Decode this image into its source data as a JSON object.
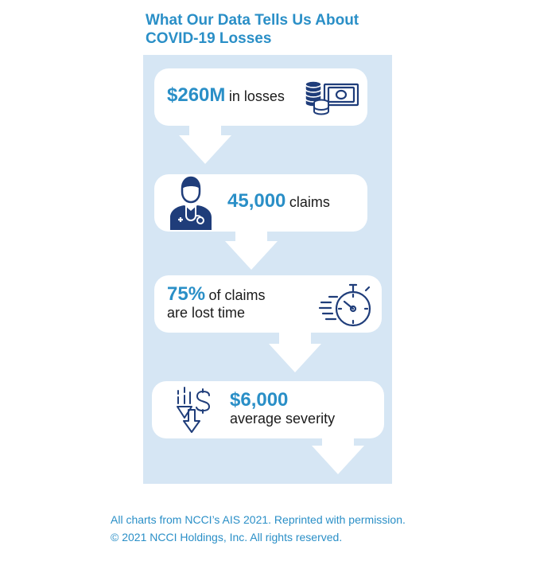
{
  "title": {
    "line1": "What Our Data Tells Us About",
    "line2": "COVID-19 Losses"
  },
  "stats": [
    {
      "value": "$260M",
      "text": "in losses",
      "icon": "money-icon"
    },
    {
      "value": "45,000",
      "text": "claims",
      "icon": "doctor-icon"
    },
    {
      "value": "75%",
      "text": "of claims",
      "text2": "are lost time",
      "icon": "stopwatch-icon"
    },
    {
      "value": "$6,000",
      "text": "average severity",
      "icon": "dollar-down-icon"
    }
  ],
  "footer": {
    "line1": "All charts from NCCI’s AIS 2021. Reprinted with permission.",
    "line2": "© 2021 NCCI Holdings, Inc. All rights reserved."
  },
  "colors": {
    "accent": "#2a8fc7",
    "panel": "#d6e6f4",
    "icon": "#1f3d7a"
  }
}
